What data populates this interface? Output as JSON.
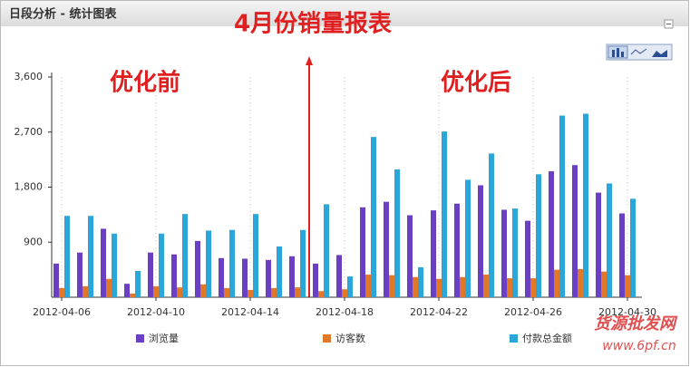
{
  "header": {
    "title": "日段分析 - 统计图表"
  },
  "chart_data": {
    "type": "bar",
    "title": "4月份销量报表",
    "annotations": [
      "优化前",
      "优化后"
    ],
    "watermark": [
      "货源批发网",
      "www.6pf.cn"
    ],
    "categories": [
      "2012-04-06",
      null,
      null,
      null,
      "2012-04-10",
      null,
      null,
      null,
      "2012-04-14",
      null,
      null,
      null,
      "2012-04-18",
      null,
      null,
      null,
      "2012-04-22",
      null,
      null,
      null,
      "2012-04-26",
      null,
      null,
      null,
      "2012-04-30"
    ],
    "series": [
      {
        "name": "浏览量",
        "color": "#6a3fc4",
        "values": [
          550,
          730,
          1120,
          220,
          730,
          700,
          920,
          640,
          630,
          610,
          670,
          550,
          690,
          1470,
          1560,
          1340,
          1420,
          1530,
          1830,
          1430,
          1250,
          2060,
          2160,
          1710,
          1370
        ]
      },
      {
        "name": "访客数",
        "color": "#e0782a",
        "values": [
          150,
          180,
          300,
          60,
          180,
          160,
          210,
          150,
          120,
          150,
          160,
          100,
          130,
          370,
          360,
          330,
          300,
          330,
          370,
          310,
          310,
          450,
          460,
          420,
          360
        ]
      },
      {
        "name": "付款总金额",
        "color": "#2aa7d8",
        "values": [
          1330,
          1330,
          1040,
          430,
          1040,
          1360,
          1090,
          1100,
          1360,
          830,
          1100,
          1520,
          340,
          2620,
          2090,
          490,
          2710,
          1920,
          2350,
          1450,
          2010,
          2970,
          3000,
          1860,
          1610
        ]
      }
    ],
    "ylim": [
      0,
      3600
    ],
    "yticks": [
      900,
      {
        "value": 1800,
        "label": "1,800"
      },
      {
        "value": 2700,
        "label": "2,700"
      },
      {
        "value": 3600,
        "label": "3,600"
      }
    ],
    "grid": false
  }
}
